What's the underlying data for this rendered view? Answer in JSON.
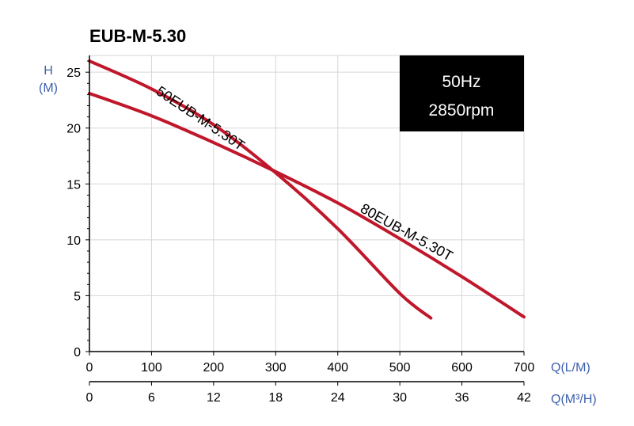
{
  "chart_data": {
    "type": "line",
    "title": "EUB-M-5.30",
    "info_box": [
      "50Hz",
      "2850rpm"
    ],
    "y_axis": {
      "label_line1": "H",
      "label_line2": "(M)",
      "ticks": [
        0,
        5,
        10,
        15,
        20,
        25
      ],
      "ylim": [
        0,
        26.5
      ]
    },
    "x_axis_primary": {
      "label": "Q(L/M)",
      "ticks": [
        0,
        100,
        200,
        300,
        400,
        500,
        600,
        700
      ],
      "xlim": [
        0,
        700
      ]
    },
    "x_axis_secondary": {
      "label": "Q(M³/H)",
      "ticks": [
        0,
        6,
        12,
        18,
        24,
        30,
        36,
        42
      ]
    },
    "grid": true,
    "series": [
      {
        "name": "50EUB-M-5.30T",
        "color": "#c0172b",
        "x": [
          0,
          100,
          200,
          300,
          400,
          500,
          550
        ],
        "y": [
          26,
          23.5,
          20.3,
          16,
          11,
          5.2,
          3
        ]
      },
      {
        "name": "80EUB-M-5.30T",
        "color": "#c0172b",
        "x": [
          0,
          100,
          200,
          300,
          400,
          500,
          600,
          700
        ],
        "y": [
          23.1,
          21.1,
          18.7,
          16.1,
          13.3,
          10.1,
          6.7,
          3.1
        ]
      }
    ]
  }
}
